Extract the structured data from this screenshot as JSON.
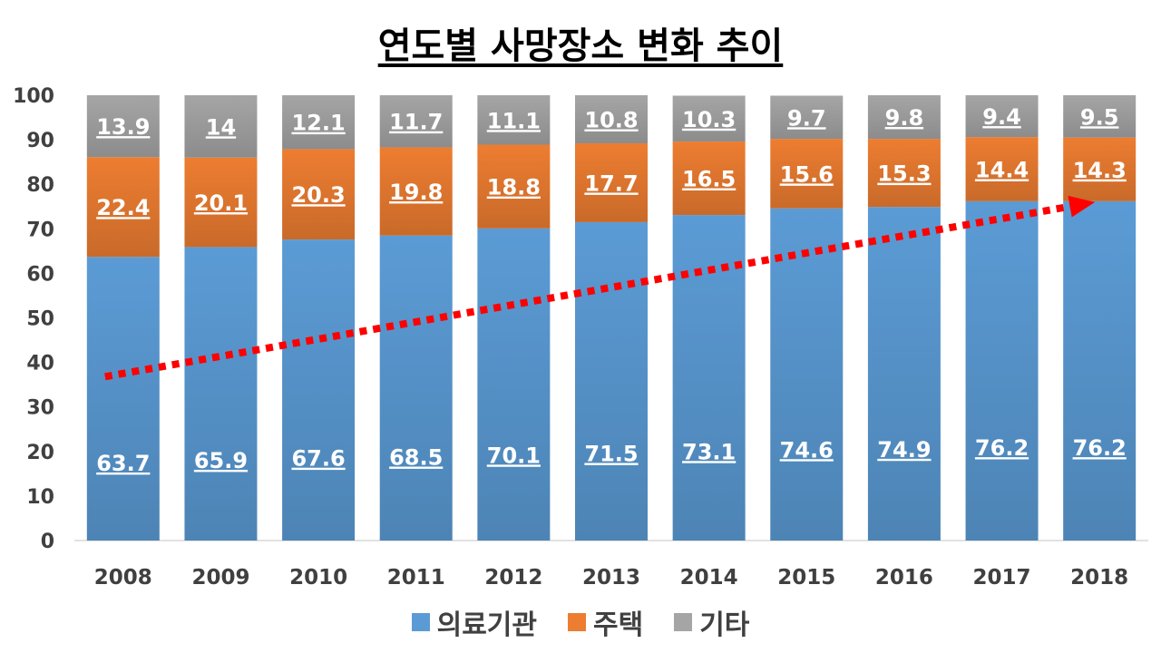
{
  "chart_data": {
    "type": "bar",
    "stacked": true,
    "title": "연도별 사망장소 변화 추이",
    "categories": [
      "2008",
      "2009",
      "2010",
      "2011",
      "2012",
      "2013",
      "2014",
      "2015",
      "2016",
      "2017",
      "2018"
    ],
    "series": [
      {
        "name": "의료기관",
        "color": "#5b9bd5",
        "values": [
          63.7,
          65.9,
          67.6,
          68.5,
          70.1,
          71.5,
          73.1,
          74.6,
          74.9,
          76.2,
          76.2
        ],
        "labels": [
          "63.7",
          "65.9",
          "67.6",
          "68.5",
          "70.1",
          "71.5",
          "73.1",
          "74.6",
          "74.9",
          "76.2",
          "76.2"
        ]
      },
      {
        "name": "주택",
        "color": "#ed7d31",
        "values": [
          22.4,
          20.1,
          20.3,
          19.8,
          18.8,
          17.7,
          16.5,
          15.6,
          15.3,
          14.4,
          14.3
        ],
        "labels": [
          "22.4",
          "20.1",
          "20.3",
          "19.8",
          "18.8",
          "17.7",
          "16.5",
          "15.6",
          "15.3",
          "14.4",
          "14.3"
        ]
      },
      {
        "name": "기타",
        "color": "#a5a5a5",
        "values": [
          13.9,
          14,
          12.1,
          11.7,
          11.1,
          10.8,
          10.3,
          9.7,
          9.8,
          9.4,
          9.5
        ],
        "labels": [
          "13.9",
          "14",
          "12.1",
          "11.7",
          "11.1",
          "10.8",
          "10.3",
          "9.7",
          "9.8",
          "9.4",
          "9.5"
        ]
      }
    ],
    "ylim": [
      0,
      100
    ],
    "yticks": [
      "0",
      "10",
      "20",
      "30",
      "40",
      "50",
      "60",
      "70",
      "80",
      "90",
      "100"
    ],
    "grid": false,
    "legend_position": "bottom",
    "annotations": [
      {
        "type": "trend-arrow",
        "style": "dotted",
        "color": "#ff0000",
        "from": [
          "2008",
          37
        ],
        "to": [
          "2018",
          76
        ]
      }
    ]
  }
}
